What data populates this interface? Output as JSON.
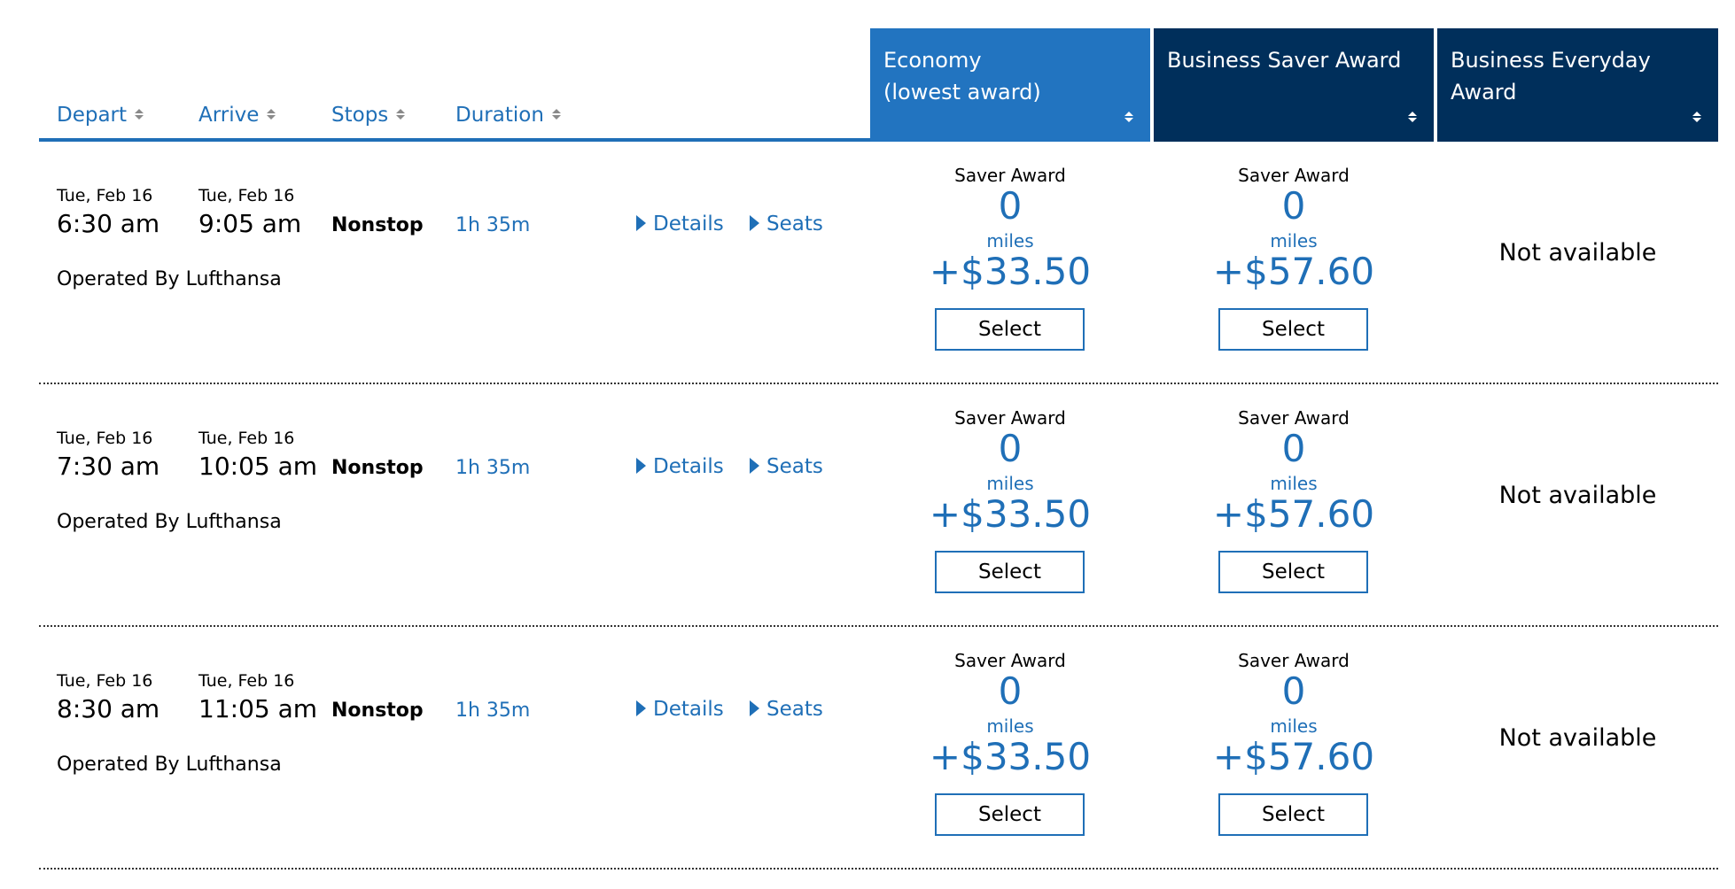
{
  "columns": {
    "depart": "Depart",
    "arrive": "Arrive",
    "stops": "Stops",
    "duration": "Duration"
  },
  "cabins": [
    {
      "line1": "Economy",
      "line2": "(lowest award)"
    },
    {
      "line1": "Business Saver Award",
      "line2": ""
    },
    {
      "line1": "Business Everyday Award",
      "line2": ""
    }
  ],
  "links": {
    "details": "Details",
    "seats": "Seats"
  },
  "colors": {
    "link_blue": "#1f6fb7",
    "economy_header": "#2274c0",
    "business_header": "#002f5b"
  },
  "flights": [
    {
      "depart_date": "Tue, Feb 16",
      "depart_time": "6:30 am",
      "arrive_date": "Tue, Feb 16",
      "arrive_time": "9:05 am",
      "stops": "Nonstop",
      "duration": "1h 35m",
      "operated": "Operated By Lufthansa",
      "economy": {
        "award_type": "Saver Award",
        "miles": "0",
        "miles_label": "miles",
        "price": "+$33.50",
        "button": "Select"
      },
      "business_saver": {
        "award_type": "Saver Award",
        "miles": "0",
        "miles_label": "miles",
        "price": "+$57.60",
        "button": "Select"
      },
      "business_everyday": {
        "status": "Not available"
      }
    },
    {
      "depart_date": "Tue, Feb 16",
      "depart_time": "7:30 am",
      "arrive_date": "Tue, Feb 16",
      "arrive_time": "10:05 am",
      "stops": "Nonstop",
      "duration": "1h 35m",
      "operated": "Operated By Lufthansa",
      "economy": {
        "award_type": "Saver Award",
        "miles": "0",
        "miles_label": "miles",
        "price": "+$33.50",
        "button": "Select"
      },
      "business_saver": {
        "award_type": "Saver Award",
        "miles": "0",
        "miles_label": "miles",
        "price": "+$57.60",
        "button": "Select"
      },
      "business_everyday": {
        "status": "Not available"
      }
    },
    {
      "depart_date": "Tue, Feb 16",
      "depart_time": "8:30 am",
      "arrive_date": "Tue, Feb 16",
      "arrive_time": "11:05 am",
      "stops": "Nonstop",
      "duration": "1h 35m",
      "operated": "Operated By Lufthansa",
      "economy": {
        "award_type": "Saver Award",
        "miles": "0",
        "miles_label": "miles",
        "price": "+$33.50",
        "button": "Select"
      },
      "business_saver": {
        "award_type": "Saver Award",
        "miles": "0",
        "miles_label": "miles",
        "price": "+$57.60",
        "button": "Select"
      },
      "business_everyday": {
        "status": "Not available"
      }
    }
  ]
}
